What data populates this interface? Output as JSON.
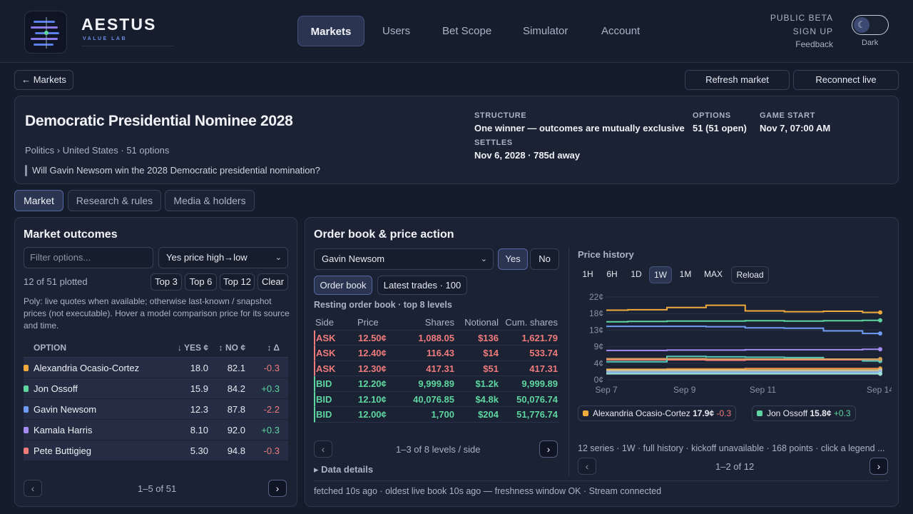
{
  "brand": {
    "name": "AESTUS",
    "tagline": "VALUE LAB"
  },
  "nav": [
    "Markets",
    "Users",
    "Bet Scope",
    "Simulator",
    "Account"
  ],
  "header_right": {
    "public_beta": "PUBLIC BETA",
    "sign_up": "SIGN UP",
    "feedback": "Feedback",
    "theme_label": "Dark"
  },
  "toolbar": {
    "back": "← Markets",
    "refresh": "Refresh market",
    "reconnect": "Reconnect live"
  },
  "market": {
    "title": "Democratic Presidential Nominee 2028",
    "breadcrumb": "Politics › United States · 51 options",
    "question": "Will Gavin Newsom win the 2028 Democratic presidential nomination?",
    "structure_label": "STRUCTURE",
    "structure_value": "One winner — outcomes are mutually exclusive",
    "options_label": "OPTIONS",
    "options_value": "51 (51 open)",
    "game_start_label": "GAME START",
    "game_start_value": "Nov 7, 07:00 AM",
    "settles_label": "SETTLES",
    "settles_value": "Nov 6, 2028 · 785d away"
  },
  "tabs": [
    "Market",
    "Research & rules",
    "Media & holders"
  ],
  "outcomes": {
    "title": "Market outcomes",
    "filter_placeholder": "Filter options...",
    "sort": "Yes price high→low",
    "plotted": "12 of 51 plotted",
    "top_buttons": [
      "Top 3",
      "Top 6",
      "Top 12",
      "Clear"
    ],
    "note": "Poly: live quotes when available; otherwise last-known / snapshot prices (not executable). Hover a model comparison price for its source and time.",
    "columns": [
      "OPTION",
      "↓ YES ¢",
      "↕ NO ¢",
      "↕ Δ"
    ],
    "rows": [
      {
        "name": "Alexandria Ocasio-Cortez",
        "yes": "18.0",
        "no": "82.1",
        "delta": "-0.3",
        "color": "#f0a93c"
      },
      {
        "name": "Jon Ossoff",
        "yes": "15.9",
        "no": "84.2",
        "delta": "+0.3",
        "color": "#5ed6a0"
      },
      {
        "name": "Gavin Newsom",
        "yes": "12.3",
        "no": "87.8",
        "delta": "-2.2",
        "color": "#6f9bf5"
      },
      {
        "name": "Kamala Harris",
        "yes": "8.10",
        "no": "92.0",
        "delta": "+0.3",
        "color": "#a58cf5"
      },
      {
        "name": "Pete Buttigieg",
        "yes": "5.30",
        "no": "94.8",
        "delta": "-0.3",
        "color": "#ef7b7b"
      }
    ],
    "pager": "1–5 of 51"
  },
  "orderbook": {
    "title": "Order book & price action",
    "selected": "Gavin Newsom",
    "yes": "Yes",
    "no": "No",
    "view_tabs": [
      "Order book",
      "Latest trades · 100"
    ],
    "subtitle": "Resting order book · top 8 levels",
    "columns": [
      "Side",
      "Price",
      "Shares",
      "Notional",
      "Cum. shares"
    ],
    "rows": [
      {
        "side": "ASK",
        "price": "12.50¢",
        "shares": "1,088.05",
        "notional": "$136",
        "cum": "1,621.79"
      },
      {
        "side": "ASK",
        "price": "12.40¢",
        "shares": "116.43",
        "notional": "$14",
        "cum": "533.74"
      },
      {
        "side": "ASK",
        "price": "12.30¢",
        "shares": "417.31",
        "notional": "$51",
        "cum": "417.31"
      },
      {
        "side": "BID",
        "price": "12.20¢",
        "shares": "9,999.89",
        "notional": "$1.2k",
        "cum": "9,999.89"
      },
      {
        "side": "BID",
        "price": "12.10¢",
        "shares": "40,076.85",
        "notional": "$4.8k",
        "cum": "50,076.74"
      },
      {
        "side": "BID",
        "price": "12.00¢",
        "shares": "1,700",
        "notional": "$204",
        "cum": "51,776.74"
      }
    ],
    "pager": "1–3 of 8 levels / side",
    "details": "▸ Data details",
    "footer": "fetched 10s ago · oldest live book 10s ago — freshness window OK · Stream connected"
  },
  "history": {
    "title": "Price history",
    "ranges": [
      "1H",
      "6H",
      "1D",
      "1W",
      "1M",
      "MAX",
      "Reload"
    ],
    "legend": [
      {
        "name": "Alexandria Ocasio-Cortez",
        "price": "17.9¢",
        "delta": "-0.3",
        "color": "#f0a93c"
      },
      {
        "name": "Jon Ossoff",
        "price": "15.8¢",
        "delta": "+0.3",
        "color": "#5ed6a0"
      }
    ],
    "footer": "12 series · 1W · full history · kickoff unavailable · 168 points · click a legend ...",
    "pager": "1–2 of 12"
  },
  "chart_data": {
    "type": "line",
    "x": [
      "Sep 7",
      "Sep 8",
      "Sep 9",
      "Sep 10",
      "Sep 11",
      "Sep 12",
      "Sep 13",
      "Sep 14"
    ],
    "x_ticks": [
      "Sep 7",
      "Sep 9",
      "Sep 11",
      "Sep 14"
    ],
    "y_ticks": [
      "22¢",
      "18¢",
      "13¢",
      "9¢",
      "4¢",
      "0¢"
    ],
    "ylim": [
      0,
      22
    ],
    "grid": true,
    "series": [
      {
        "name": "Alexandria Ocasio-Cortez",
        "color": "#f0a93c",
        "values": [
          18.5,
          18.6,
          19.2,
          19.8,
          18.3,
          18.1,
          18.2,
          17.9
        ]
      },
      {
        "name": "Jon Ossoff",
        "color": "#5ed6a0",
        "values": [
          15.4,
          15.5,
          15.6,
          15.6,
          15.7,
          15.6,
          15.7,
          15.8
        ]
      },
      {
        "name": "Gavin Newsom",
        "color": "#6f9bf5",
        "values": [
          14.2,
          14.2,
          14.2,
          14.1,
          13.8,
          13.7,
          13.0,
          12.3
        ]
      },
      {
        "name": "Kamala Harris",
        "color": "#a58cf5",
        "values": [
          7.8,
          7.8,
          7.9,
          7.9,
          8.0,
          8.0,
          8.0,
          8.1
        ]
      },
      {
        "name": "Pete Buttigieg",
        "color": "#ef7b7b",
        "values": [
          5.3,
          5.3,
          5.3,
          5.2,
          5.3,
          5.3,
          5.3,
          5.3
        ]
      },
      {
        "name": "",
        "color": "#59c9b6",
        "values": [
          4.8,
          4.8,
          6.2,
          6.1,
          6.0,
          5.9,
          5.5,
          5.0
        ]
      },
      {
        "name": "",
        "color": "#d3a15a",
        "values": [
          5.6,
          5.6,
          5.6,
          5.5,
          5.5,
          5.5,
          5.5,
          5.5
        ]
      },
      {
        "name": "",
        "color": "#e58e4a",
        "values": [
          2.8,
          2.8,
          2.9,
          2.9,
          3.0,
          3.0,
          3.0,
          3.0
        ]
      },
      {
        "name": "",
        "color": "#e1c76b",
        "values": [
          2.6,
          2.6,
          2.6,
          2.6,
          2.6,
          2.6,
          2.6,
          2.6
        ]
      },
      {
        "name": "",
        "color": "#b5bcc9",
        "values": [
          2.3,
          2.3,
          2.3,
          2.3,
          2.3,
          2.3,
          2.3,
          2.3
        ]
      },
      {
        "name": "",
        "color": "#7fb6e8",
        "values": [
          1.9,
          1.9,
          1.9,
          1.9,
          1.9,
          1.9,
          1.9,
          1.9
        ]
      },
      {
        "name": "",
        "color": "#9be0d1",
        "values": [
          1.6,
          1.6,
          1.6,
          1.6,
          1.6,
          1.6,
          1.6,
          1.6
        ]
      }
    ]
  }
}
